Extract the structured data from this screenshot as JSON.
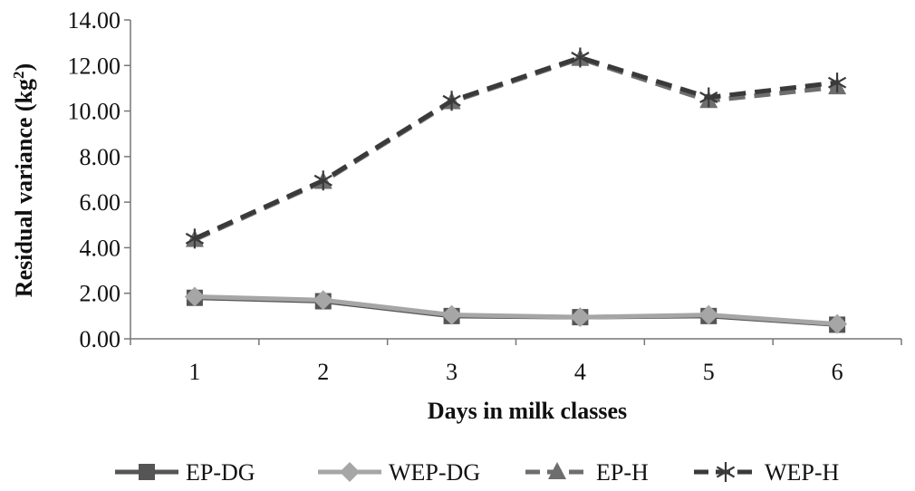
{
  "chart_data": {
    "type": "line",
    "title": "",
    "xlabel": "Days in milk classes",
    "ylabel_main": "Residual variance (kg",
    "ylabel_sup": "2",
    "ylabel_close": ")",
    "categories": [
      "1",
      "2",
      "3",
      "4",
      "5",
      "6"
    ],
    "y_ticks": [
      "0.00",
      "2.00",
      "4.00",
      "6.00",
      "8.00",
      "10.00",
      "12.00",
      "14.00"
    ],
    "ylim": [
      0,
      14
    ],
    "grid": false,
    "legend_position": "bottom",
    "series": [
      {
        "name": "EP-DG",
        "values": [
          1.8,
          1.65,
          1.0,
          0.95,
          1.0,
          0.62
        ],
        "color": "#555555",
        "dash": "solid",
        "marker": "square"
      },
      {
        "name": "WEP-DG",
        "values": [
          1.85,
          1.7,
          1.05,
          0.95,
          1.05,
          0.65
        ],
        "color": "#a6a6a6",
        "dash": "solid",
        "marker": "diamond"
      },
      {
        "name": "EP-H",
        "values": [
          4.35,
          6.9,
          10.4,
          12.3,
          10.45,
          11.05
        ],
        "color": "#6e6e6e",
        "dash": "dashed",
        "marker": "triangle"
      },
      {
        "name": "WEP-H",
        "values": [
          4.4,
          6.95,
          10.45,
          12.35,
          10.6,
          11.25
        ],
        "color": "#3a3a3a",
        "dash": "dashed",
        "marker": "star"
      }
    ]
  }
}
